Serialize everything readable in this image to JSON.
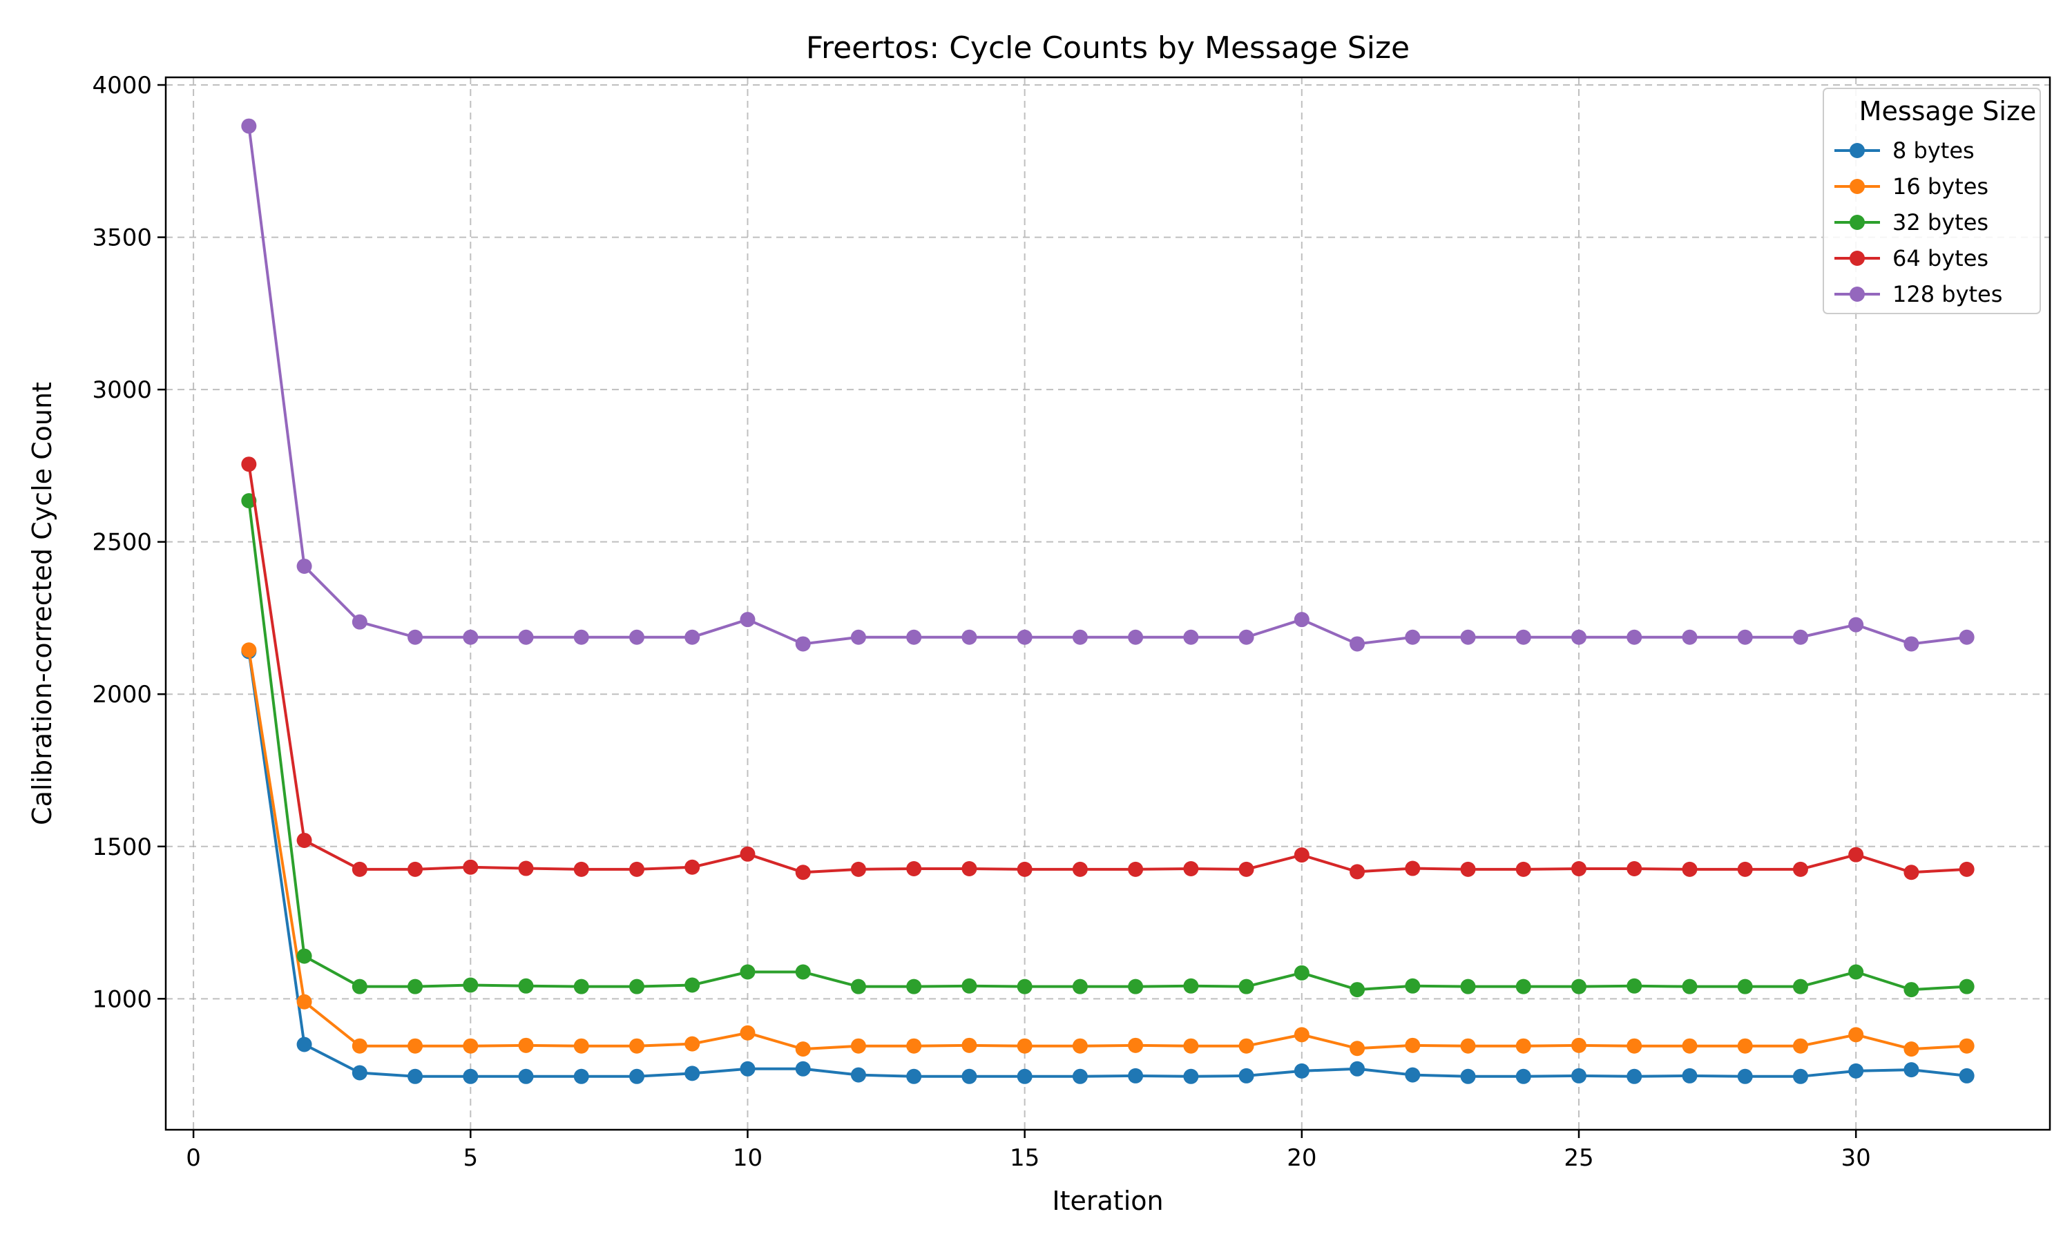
{
  "chart_data": {
    "type": "line",
    "title": "Freertos: Cycle Counts by Message Size",
    "xlabel": "Iteration",
    "ylabel": "Calibration-corrected Cycle Count",
    "xlim": [
      -0.5,
      33.5
    ],
    "ylim": [
      570,
      4025
    ],
    "xticks": [
      0,
      5,
      10,
      15,
      20,
      25,
      30
    ],
    "yticks": [
      1000,
      1500,
      2000,
      2500,
      3000,
      3500,
      4000
    ],
    "grid": true,
    "legend": {
      "title": "Message Size",
      "placement": "top-right"
    },
    "x": [
      1,
      2,
      3,
      4,
      5,
      6,
      7,
      8,
      9,
      10,
      11,
      12,
      13,
      14,
      15,
      16,
      17,
      18,
      19,
      20,
      21,
      22,
      23,
      24,
      25,
      26,
      27,
      28,
      29,
      30,
      31,
      32
    ],
    "series": [
      {
        "name": "8 bytes",
        "color": "#1f77b4",
        "values": [
          2140,
          850,
          757,
          745,
          745,
          745,
          745,
          745,
          755,
          770,
          770,
          750,
          745,
          745,
          745,
          745,
          747,
          745,
          747,
          763,
          770,
          750,
          745,
          745,
          747,
          745,
          747,
          745,
          745,
          763,
          767,
          747
        ]
      },
      {
        "name": "16 bytes",
        "color": "#ff7f0e",
        "values": [
          2145,
          990,
          845,
          845,
          845,
          847,
          845,
          845,
          852,
          888,
          835,
          845,
          845,
          847,
          845,
          845,
          847,
          845,
          845,
          882,
          837,
          847,
          845,
          845,
          847,
          845,
          845,
          845,
          845,
          882,
          835,
          845
        ]
      },
      {
        "name": "32 bytes",
        "color": "#2ca02c",
        "values": [
          2635,
          1140,
          1040,
          1040,
          1045,
          1042,
          1040,
          1040,
          1045,
          1088,
          1088,
          1040,
          1040,
          1042,
          1040,
          1040,
          1040,
          1042,
          1040,
          1085,
          1030,
          1042,
          1040,
          1040,
          1040,
          1042,
          1040,
          1040,
          1040,
          1088,
          1030,
          1040
        ]
      },
      {
        "name": "64 bytes",
        "color": "#d62728",
        "values": [
          2755,
          1520,
          1425,
          1425,
          1432,
          1428,
          1425,
          1425,
          1432,
          1475,
          1415,
          1425,
          1427,
          1427,
          1425,
          1425,
          1425,
          1427,
          1425,
          1472,
          1417,
          1428,
          1425,
          1425,
          1427,
          1427,
          1425,
          1425,
          1425,
          1473,
          1415,
          1425
        ]
      },
      {
        "name": "128 bytes",
        "color": "#9467bd",
        "values": [
          3865,
          2420,
          2237,
          2187,
          2187,
          2187,
          2187,
          2187,
          2187,
          2245,
          2165,
          2187,
          2187,
          2187,
          2187,
          2187,
          2187,
          2187,
          2187,
          2245,
          2165,
          2187,
          2187,
          2187,
          2187,
          2187,
          2187,
          2187,
          2187,
          2228,
          2165,
          2187
        ]
      }
    ]
  }
}
